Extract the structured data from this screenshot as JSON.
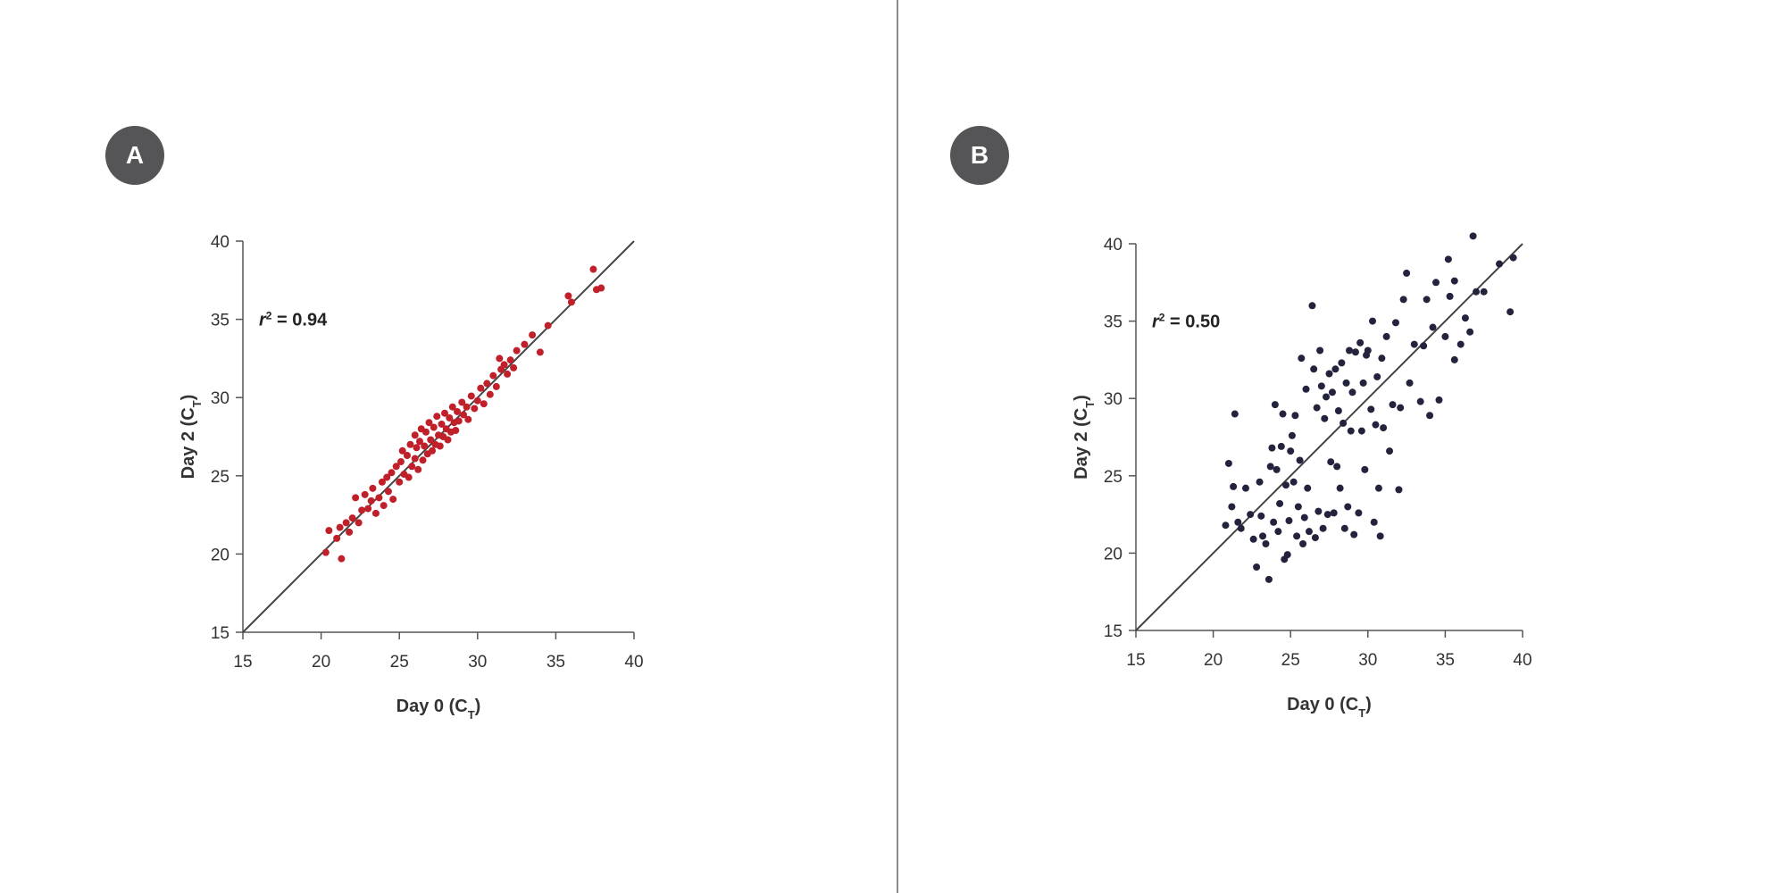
{
  "colors": {
    "panel_a_points": "#c0202a",
    "panel_b_points": "#23233d",
    "axis": "#555555",
    "badge": "#555557",
    "divider": "#8e8e8e"
  },
  "chart_data": [
    {
      "panel_label": "A",
      "type": "scatter",
      "xlabel_main": "Day 0 (C",
      "xlabel_sub": "T",
      "xlabel_end": ")",
      "ylabel_main": "Day 2 (C",
      "ylabel_sub": "T",
      "ylabel_end": ")",
      "annotation_main": "r",
      "annotation_sup": "2",
      "annotation_value": " = 0.94",
      "xlim": [
        15,
        40
      ],
      "ylim": [
        15,
        40
      ],
      "xticks": [
        "15",
        "20",
        "25",
        "30",
        "35",
        "40"
      ],
      "yticks": [
        "15",
        "20",
        "25",
        "30",
        "35",
        "40"
      ],
      "reference_line": [
        [
          15,
          15
        ],
        [
          40,
          40
        ]
      ],
      "points": [
        [
          20.3,
          20.1
        ],
        [
          20.5,
          21.5
        ],
        [
          21.0,
          21.0
        ],
        [
          21.2,
          21.7
        ],
        [
          21.3,
          19.7
        ],
        [
          21.6,
          22.0
        ],
        [
          21.8,
          21.4
        ],
        [
          22.0,
          22.3
        ],
        [
          22.2,
          23.6
        ],
        [
          22.4,
          22.0
        ],
        [
          22.6,
          22.8
        ],
        [
          22.8,
          23.8
        ],
        [
          23.0,
          22.9
        ],
        [
          23.2,
          23.4
        ],
        [
          23.3,
          24.2
        ],
        [
          23.5,
          22.6
        ],
        [
          23.7,
          23.6
        ],
        [
          23.9,
          24.6
        ],
        [
          24.0,
          23.1
        ],
        [
          24.2,
          24.9
        ],
        [
          24.3,
          24.0
        ],
        [
          24.5,
          25.2
        ],
        [
          24.6,
          23.5
        ],
        [
          24.8,
          25.6
        ],
        [
          25.0,
          24.6
        ],
        [
          25.1,
          25.9
        ],
        [
          25.2,
          26.6
        ],
        [
          25.3,
          25.1
        ],
        [
          25.5,
          26.3
        ],
        [
          25.6,
          24.9
        ],
        [
          25.7,
          27.0
        ],
        [
          25.8,
          25.6
        ],
        [
          26.0,
          26.1
        ],
        [
          26.0,
          27.6
        ],
        [
          26.1,
          26.8
        ],
        [
          26.2,
          25.4
        ],
        [
          26.3,
          27.2
        ],
        [
          26.4,
          28.0
        ],
        [
          26.5,
          26.0
        ],
        [
          26.6,
          26.9
        ],
        [
          26.7,
          27.8
        ],
        [
          26.8,
          26.4
        ],
        [
          26.9,
          28.4
        ],
        [
          27.0,
          27.3
        ],
        [
          27.1,
          26.6
        ],
        [
          27.2,
          28.1
        ],
        [
          27.3,
          27.0
        ],
        [
          27.4,
          28.8
        ],
        [
          27.5,
          27.6
        ],
        [
          27.6,
          26.9
        ],
        [
          27.7,
          28.3
        ],
        [
          27.8,
          27.5
        ],
        [
          27.9,
          29.0
        ],
        [
          28.0,
          28.0
        ],
        [
          28.1,
          27.3
        ],
        [
          28.2,
          28.7
        ],
        [
          28.3,
          27.8
        ],
        [
          28.4,
          29.4
        ],
        [
          28.5,
          28.4
        ],
        [
          28.6,
          27.9
        ],
        [
          28.7,
          29.1
        ],
        [
          28.8,
          28.5
        ],
        [
          29.0,
          29.7
        ],
        [
          29.1,
          28.9
        ],
        [
          29.3,
          29.4
        ],
        [
          29.4,
          28.6
        ],
        [
          29.6,
          30.1
        ],
        [
          29.8,
          29.3
        ],
        [
          30.0,
          29.8
        ],
        [
          30.2,
          30.6
        ],
        [
          30.4,
          29.6
        ],
        [
          30.6,
          30.9
        ],
        [
          30.8,
          30.2
        ],
        [
          31.0,
          31.4
        ],
        [
          31.2,
          30.7
        ],
        [
          31.4,
          32.5
        ],
        [
          31.5,
          31.8
        ],
        [
          31.7,
          32.1
        ],
        [
          31.9,
          31.5
        ],
        [
          32.1,
          32.4
        ],
        [
          32.3,
          31.9
        ],
        [
          32.5,
          33.0
        ],
        [
          33.0,
          33.4
        ],
        [
          33.5,
          34.0
        ],
        [
          34.0,
          32.9
        ],
        [
          34.5,
          34.6
        ],
        [
          35.8,
          36.5
        ],
        [
          36.0,
          36.1
        ],
        [
          37.4,
          38.2
        ],
        [
          37.6,
          36.9
        ],
        [
          37.9,
          37.0
        ]
      ]
    },
    {
      "panel_label": "B",
      "type": "scatter",
      "xlabel_main": "Day 0 (C",
      "xlabel_sub": "T",
      "xlabel_end": ")",
      "ylabel_main": "Day 2 (C",
      "ylabel_sub": "T",
      "ylabel_end": ")",
      "annotation_main": "r",
      "annotation_sup": "2",
      "annotation_value": " = 0.50",
      "xlim": [
        15,
        40
      ],
      "ylim": [
        15,
        40
      ],
      "xticks": [
        "15",
        "20",
        "25",
        "30",
        "35",
        "40"
      ],
      "yticks": [
        "15",
        "20",
        "25",
        "30",
        "35",
        "40"
      ],
      "reference_line": [
        [
          15,
          15
        ],
        [
          40,
          40
        ]
      ],
      "points": [
        [
          20.8,
          21.8
        ],
        [
          21.0,
          25.8
        ],
        [
          21.2,
          23.0
        ],
        [
          21.3,
          24.3
        ],
        [
          21.4,
          29.0
        ],
        [
          21.6,
          22.0
        ],
        [
          21.8,
          21.6
        ],
        [
          22.1,
          24.2
        ],
        [
          22.4,
          22.5
        ],
        [
          22.6,
          20.9
        ],
        [
          22.8,
          19.1
        ],
        [
          23.0,
          24.6
        ],
        [
          23.1,
          22.4
        ],
        [
          23.2,
          21.1
        ],
        [
          23.4,
          20.6
        ],
        [
          23.6,
          18.3
        ],
        [
          23.7,
          25.6
        ],
        [
          23.8,
          26.8
        ],
        [
          23.9,
          22.0
        ],
        [
          24.0,
          29.6
        ],
        [
          24.1,
          25.4
        ],
        [
          24.2,
          21.4
        ],
        [
          24.3,
          23.2
        ],
        [
          24.4,
          26.9
        ],
        [
          24.5,
          29.0
        ],
        [
          24.6,
          19.6
        ],
        [
          24.7,
          24.4
        ],
        [
          24.8,
          19.9
        ],
        [
          24.9,
          22.1
        ],
        [
          25.0,
          26.6
        ],
        [
          25.1,
          27.6
        ],
        [
          25.2,
          24.6
        ],
        [
          25.3,
          28.9
        ],
        [
          25.4,
          21.1
        ],
        [
          25.5,
          23.0
        ],
        [
          25.6,
          26.0
        ],
        [
          25.7,
          32.6
        ],
        [
          25.8,
          20.6
        ],
        [
          25.9,
          22.3
        ],
        [
          26.0,
          30.6
        ],
        [
          26.1,
          24.2
        ],
        [
          26.2,
          21.4
        ],
        [
          26.4,
          36.0
        ],
        [
          26.5,
          31.9
        ],
        [
          26.6,
          21.0
        ],
        [
          26.7,
          29.4
        ],
        [
          26.8,
          22.7
        ],
        [
          26.9,
          33.1
        ],
        [
          27.0,
          30.8
        ],
        [
          27.1,
          21.6
        ],
        [
          27.2,
          28.7
        ],
        [
          27.3,
          30.1
        ],
        [
          27.4,
          22.5
        ],
        [
          27.5,
          31.6
        ],
        [
          27.6,
          25.9
        ],
        [
          27.7,
          30.4
        ],
        [
          27.8,
          22.6
        ],
        [
          27.9,
          31.9
        ],
        [
          28.0,
          25.6
        ],
        [
          28.1,
          29.2
        ],
        [
          28.2,
          24.2
        ],
        [
          28.3,
          32.3
        ],
        [
          28.4,
          28.4
        ],
        [
          28.5,
          21.6
        ],
        [
          28.6,
          31.0
        ],
        [
          28.7,
          23.0
        ],
        [
          28.8,
          33.1
        ],
        [
          28.9,
          27.9
        ],
        [
          29.0,
          30.4
        ],
        [
          29.1,
          21.2
        ],
        [
          29.2,
          33.0
        ],
        [
          29.4,
          22.6
        ],
        [
          29.5,
          33.6
        ],
        [
          29.6,
          27.9
        ],
        [
          29.7,
          31.0
        ],
        [
          29.8,
          25.4
        ],
        [
          29.9,
          32.8
        ],
        [
          30.0,
          33.1
        ],
        [
          30.2,
          29.3
        ],
        [
          30.3,
          35.0
        ],
        [
          30.4,
          22.0
        ],
        [
          30.5,
          28.3
        ],
        [
          30.6,
          31.4
        ],
        [
          30.7,
          24.2
        ],
        [
          30.8,
          21.1
        ],
        [
          30.9,
          32.6
        ],
        [
          31.0,
          28.1
        ],
        [
          31.2,
          34.0
        ],
        [
          31.4,
          26.6
        ],
        [
          31.6,
          29.6
        ],
        [
          31.8,
          34.9
        ],
        [
          32.0,
          24.1
        ],
        [
          32.1,
          29.4
        ],
        [
          32.3,
          36.4
        ],
        [
          32.5,
          38.1
        ],
        [
          32.7,
          31.0
        ],
        [
          33.0,
          33.5
        ],
        [
          33.4,
          29.8
        ],
        [
          33.6,
          33.4
        ],
        [
          33.8,
          36.4
        ],
        [
          34.0,
          28.9
        ],
        [
          34.2,
          34.6
        ],
        [
          34.4,
          37.5
        ],
        [
          34.6,
          29.9
        ],
        [
          35.0,
          34.0
        ],
        [
          35.3,
          36.6
        ],
        [
          35.6,
          32.5
        ],
        [
          36.0,
          33.5
        ],
        [
          36.3,
          35.2
        ],
        [
          36.6,
          34.3
        ],
        [
          36.8,
          40.5
        ],
        [
          37.0,
          36.9
        ],
        [
          37.5,
          36.9
        ],
        [
          38.5,
          38.7
        ],
        [
          39.4,
          39.1
        ],
        [
          39.2,
          35.6
        ],
        [
          35.2,
          39.0
        ],
        [
          35.6,
          37.6
        ]
      ]
    }
  ]
}
